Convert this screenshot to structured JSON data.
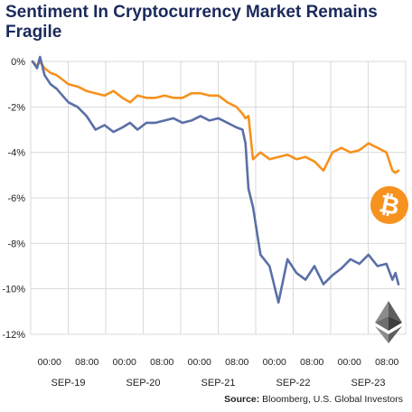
{
  "title": "Sentiment In Cryptocurrency Market Remains Fragile",
  "source_label": "Source:",
  "source_text": "Bloomberg, U.S. Global Investors",
  "colors": {
    "bitcoin": "#f6921e",
    "ethereum": "#5a6fa6",
    "title": "#1a2a5c",
    "grid": "#d9d9d9"
  },
  "icons": {
    "series_1": "bitcoin-logo-icon",
    "series_2": "ethereum-logo-icon"
  },
  "chart_data": {
    "type": "line",
    "title": "Sentiment In Cryptocurrency Market Remains Fragile",
    "xlabel": "",
    "ylabel": "",
    "ylim": [
      -12,
      0
    ],
    "yticks": [
      0,
      -2,
      -4,
      -6,
      -8,
      -10,
      -12
    ],
    "ytick_labels": [
      "0%",
      "-2%",
      "-4%",
      "-6%",
      "-8%",
      "-10%",
      "-12%"
    ],
    "time_labels": [
      "00:00",
      "08:00",
      "00:00",
      "08:00",
      "00:00",
      "08:00",
      "00:00",
      "08:00",
      "00:00",
      "08:00"
    ],
    "date_labels": [
      "SEP-19",
      "SEP-20",
      "SEP-21",
      "SEP-22",
      "SEP-23"
    ],
    "grid": true,
    "legend": "icons at right",
    "x_index": [
      0,
      3,
      5,
      8,
      12,
      16,
      20,
      24,
      30,
      36,
      42,
      48,
      54,
      60,
      65,
      70,
      76,
      82,
      88,
      94,
      100,
      106,
      112,
      118,
      124,
      130,
      136,
      140,
      142,
      144,
      147,
      152,
      158,
      164,
      170,
      176,
      182,
      188,
      194,
      200,
      206,
      212,
      218,
      224,
      230,
      236,
      240,
      242,
      244
    ],
    "series": [
      {
        "values": [
          0,
          -0.2,
          0,
          -0.3,
          -0.5,
          -0.6,
          -0.8,
          -1.0,
          -1.1,
          -1.3,
          -1.4,
          -1.5,
          -1.3,
          -1.6,
          -1.8,
          -1.5,
          -1.6,
          -1.6,
          -1.5,
          -1.6,
          -1.6,
          -1.4,
          -1.4,
          -1.5,
          -1.5,
          -1.8,
          -2.0,
          -2.3,
          -2.5,
          -2.4,
          -4.3,
          -4.0,
          -4.3,
          -4.2,
          -4.1,
          -4.3,
          -4.2,
          -4.4,
          -4.8,
          -4.0,
          -3.8,
          -4.0,
          -3.9,
          -3.6,
          -3.8,
          -4.0,
          -4.8,
          -4.9,
          -4.8
        ]
      },
      {
        "values": [
          0,
          -0.3,
          0.2,
          -0.6,
          -1.0,
          -1.2,
          -1.5,
          -1.8,
          -2.0,
          -2.4,
          -3.0,
          -2.8,
          -3.1,
          -2.9,
          -2.7,
          -3.0,
          -2.7,
          -2.7,
          -2.6,
          -2.5,
          -2.7,
          -2.6,
          -2.4,
          -2.6,
          -2.5,
          -2.7,
          -2.9,
          -3.0,
          -3.6,
          -5.6,
          -6.4,
          -8.5,
          -9.0,
          -10.6,
          -8.7,
          -9.3,
          -9.6,
          -9.0,
          -9.8,
          -9.4,
          -9.1,
          -8.7,
          -8.9,
          -8.5,
          -9.0,
          -8.9,
          -9.6,
          -9.3,
          -9.8
        ]
      }
    ]
  }
}
